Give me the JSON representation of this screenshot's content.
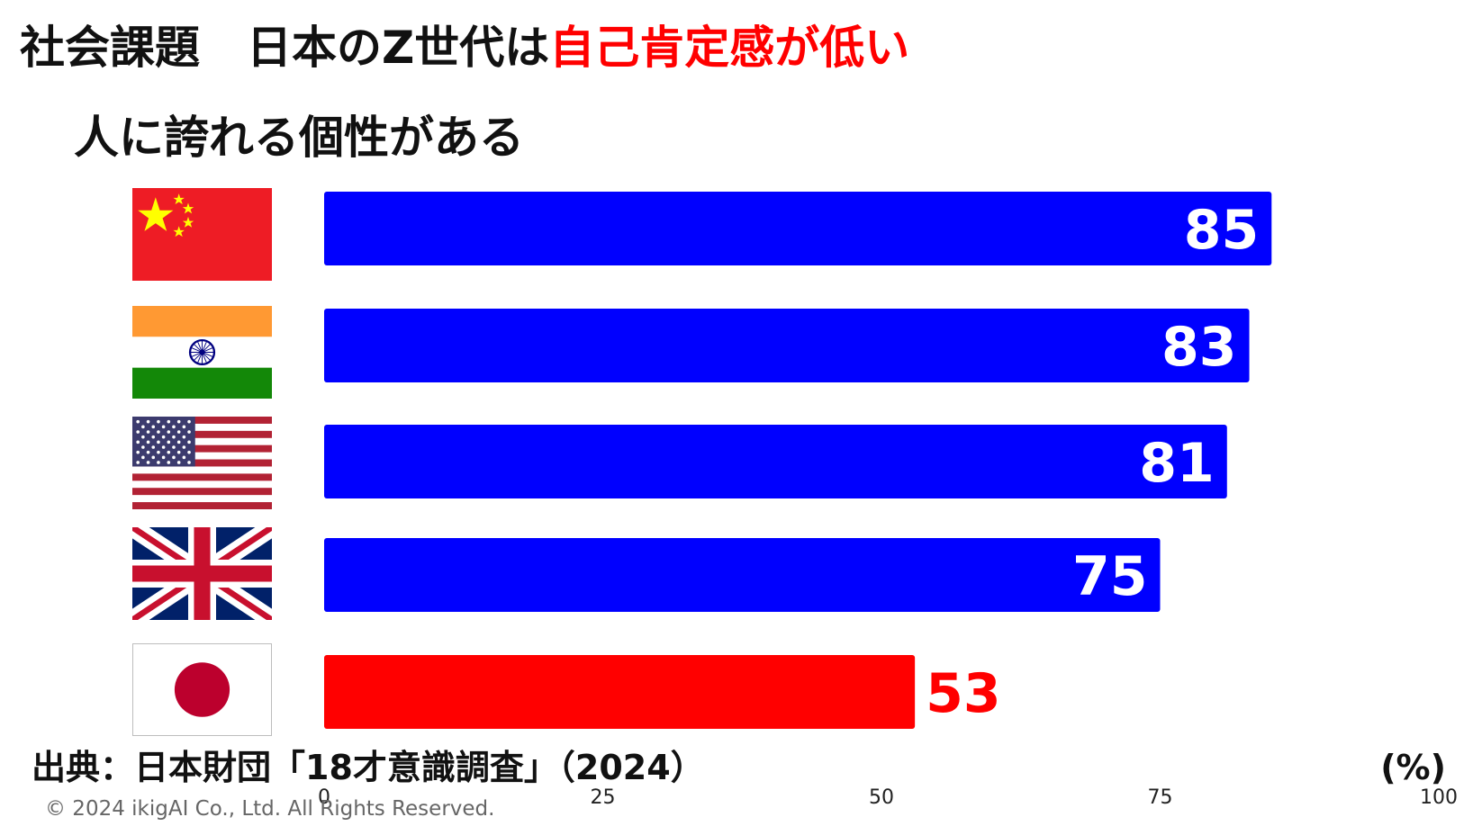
{
  "title": {
    "prefix": "社会課題",
    "main": "日本のZ世代は",
    "accent": "自己肯定感が低い"
  },
  "colors": {
    "bar_default": "#0000ff",
    "bar_highlight": "#ff0000",
    "accent": "#ff0000"
  },
  "chart_data": {
    "type": "bar",
    "orientation": "horizontal",
    "title": "人に誇れる個性がある",
    "categories": [
      "china-flag",
      "india-flag",
      "usa-flag",
      "uk-flag",
      "japan-flag"
    ],
    "values": [
      85,
      83,
      81,
      75,
      53
    ],
    "highlight_index": 4,
    "xlim": [
      0,
      100
    ],
    "xticks": [
      "0",
      "25",
      "50",
      "75",
      "100"
    ],
    "unit": "(%)",
    "grid": false
  },
  "source": "出典：日本財団「18才意識調査」（2024）",
  "copyright": "© 2024 ikigAI Co., Ltd. All Rights Reserved."
}
